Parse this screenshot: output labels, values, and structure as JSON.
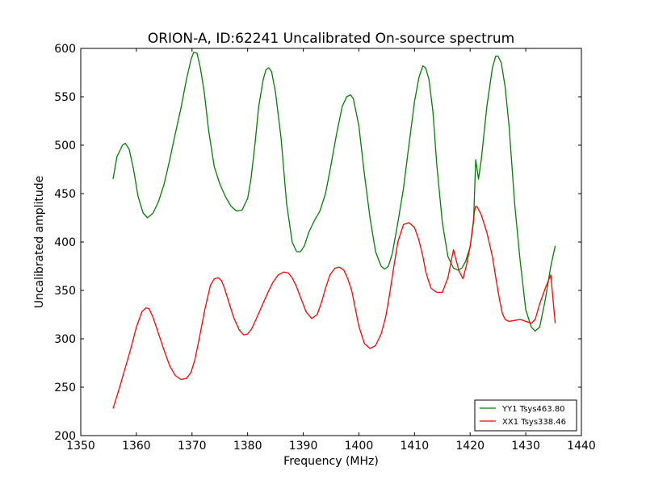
{
  "chart_data": {
    "type": "line",
    "title": "ORION-A, ID:62241 Uncalibrated On-source spectrum",
    "xlabel": "Frequency (MHz)",
    "ylabel": "Uncalibrated amplitude",
    "xlim": [
      1350,
      1440
    ],
    "ylim": [
      200,
      600
    ],
    "xticks": [
      1350,
      1360,
      1370,
      1380,
      1390,
      1400,
      1410,
      1420,
      1430,
      1440
    ],
    "yticks": [
      200,
      250,
      300,
      350,
      400,
      450,
      500,
      550,
      600
    ],
    "grid": false,
    "legend_position": "bottom-right",
    "series": [
      {
        "name": "YY1 Tsys463.80",
        "color": "#008000",
        "x": [
          1355.8,
          1356.5,
          1357.5,
          1358.0,
          1358.7,
          1359.5,
          1360.3,
          1361.2,
          1362.0,
          1363.0,
          1364.0,
          1365.0,
          1366.0,
          1367.0,
          1368.0,
          1369.0,
          1369.8,
          1370.3,
          1370.9,
          1371.5,
          1372.2,
          1373.0,
          1374.0,
          1375.0,
          1376.0,
          1377.0,
          1378.0,
          1379.0,
          1380.0,
          1380.6,
          1381.3,
          1382.0,
          1382.8,
          1383.3,
          1383.8,
          1384.3,
          1385.0,
          1386.0,
          1387.0,
          1388.0,
          1388.8,
          1389.5,
          1390.2,
          1391.0,
          1392.0,
          1393.0,
          1394.0,
          1395.0,
          1396.0,
          1397.0,
          1397.8,
          1398.5,
          1399.0,
          1400.0,
          1401.0,
          1402.0,
          1403.0,
          1404.0,
          1404.6,
          1405.3,
          1406.0,
          1407.0,
          1408.0,
          1409.0,
          1410.0,
          1410.8,
          1411.5,
          1412.0,
          1412.6,
          1413.3,
          1414.0,
          1415.0,
          1416.0,
          1417.0,
          1417.8,
          1418.5,
          1419.2,
          1420.0,
          1420.6,
          1421.0,
          1421.5,
          1422.0,
          1423.0,
          1424.0,
          1424.6,
          1425.0,
          1425.6,
          1426.3,
          1427.0,
          1428.0,
          1429.0,
          1430.0,
          1431.0,
          1431.7,
          1432.5,
          1433.5,
          1434.5,
          1435.3
        ],
        "y": [
          465,
          488,
          500,
          502,
          496,
          475,
          447,
          430,
          425,
          430,
          442,
          460,
          485,
          512,
          538,
          568,
          588,
          596,
          595,
          580,
          555,
          515,
          478,
          460,
          447,
          437,
          432,
          433,
          445,
          465,
          500,
          540,
          568,
          578,
          580,
          576,
          555,
          508,
          440,
          400,
          390,
          390,
          396,
          410,
          422,
          432,
          450,
          480,
          512,
          540,
          550,
          552,
          548,
          520,
          470,
          425,
          390,
          375,
          372,
          375,
          388,
          420,
          455,
          500,
          545,
          570,
          582,
          580,
          568,
          535,
          480,
          420,
          385,
          373,
          371,
          373,
          380,
          395,
          420,
          485,
          465,
          485,
          540,
          580,
          592,
          592,
          585,
          560,
          520,
          440,
          380,
          330,
          312,
          308,
          312,
          340,
          375,
          396
        ]
      },
      {
        "name": "XX1 Tsys338.46",
        "color": "#ff0000",
        "x": [
          1355.8,
          1357.0,
          1358.0,
          1359.0,
          1360.0,
          1361.0,
          1361.7,
          1362.3,
          1363.0,
          1364.0,
          1365.0,
          1366.0,
          1367.0,
          1368.0,
          1369.0,
          1369.8,
          1370.5,
          1371.3,
          1372.3,
          1373.3,
          1374.0,
          1374.7,
          1375.3,
          1375.8,
          1376.5,
          1377.5,
          1378.5,
          1379.3,
          1380.0,
          1380.7,
          1381.5,
          1382.5,
          1383.5,
          1384.5,
          1385.5,
          1386.5,
          1387.3,
          1388.0,
          1388.7,
          1389.5,
          1390.5,
          1391.5,
          1392.5,
          1393.3,
          1394.0,
          1394.8,
          1395.7,
          1396.5,
          1397.3,
          1398.0,
          1398.7,
          1399.3,
          1400.0,
          1401.0,
          1402.0,
          1403.0,
          1404.0,
          1404.8,
          1405.5,
          1406.3,
          1407.0,
          1408.0,
          1409.0,
          1410.0,
          1410.8,
          1411.5,
          1412.0,
          1412.5,
          1413.0,
          1414.0,
          1415.0,
          1416.0,
          1417.0,
          1418.0,
          1418.7,
          1419.3,
          1420.0,
          1420.5,
          1420.8,
          1421.0,
          1421.3,
          1422.0,
          1423.0,
          1424.0,
          1424.7,
          1425.3,
          1425.8,
          1426.3,
          1427.0,
          1428.0,
          1429.0,
          1430.0,
          1431.0,
          1431.7,
          1432.5,
          1433.5,
          1434.5,
          1435.3
        ],
        "y": [
          228,
          250,
          270,
          290,
          312,
          328,
          332,
          331,
          322,
          305,
          288,
          272,
          262,
          258,
          259,
          265,
          278,
          300,
          330,
          355,
          362,
          363,
          360,
          353,
          340,
          322,
          309,
          304,
          305,
          310,
          320,
          333,
          346,
          358,
          366,
          369,
          368,
          363,
          355,
          343,
          328,
          321,
          325,
          338,
          352,
          366,
          373,
          374,
          371,
          362,
          350,
          333,
          313,
          295,
          290,
          293,
          305,
          322,
          345,
          375,
          400,
          418,
          420,
          415,
          402,
          385,
          370,
          360,
          352,
          348,
          348,
          363,
          392,
          370,
          362,
          375,
          395,
          418,
          432,
          437,
          436,
          428,
          410,
          385,
          360,
          340,
          326,
          320,
          318,
          319,
          320,
          318,
          316,
          320,
          336,
          352,
          366,
          316
        ]
      }
    ]
  }
}
